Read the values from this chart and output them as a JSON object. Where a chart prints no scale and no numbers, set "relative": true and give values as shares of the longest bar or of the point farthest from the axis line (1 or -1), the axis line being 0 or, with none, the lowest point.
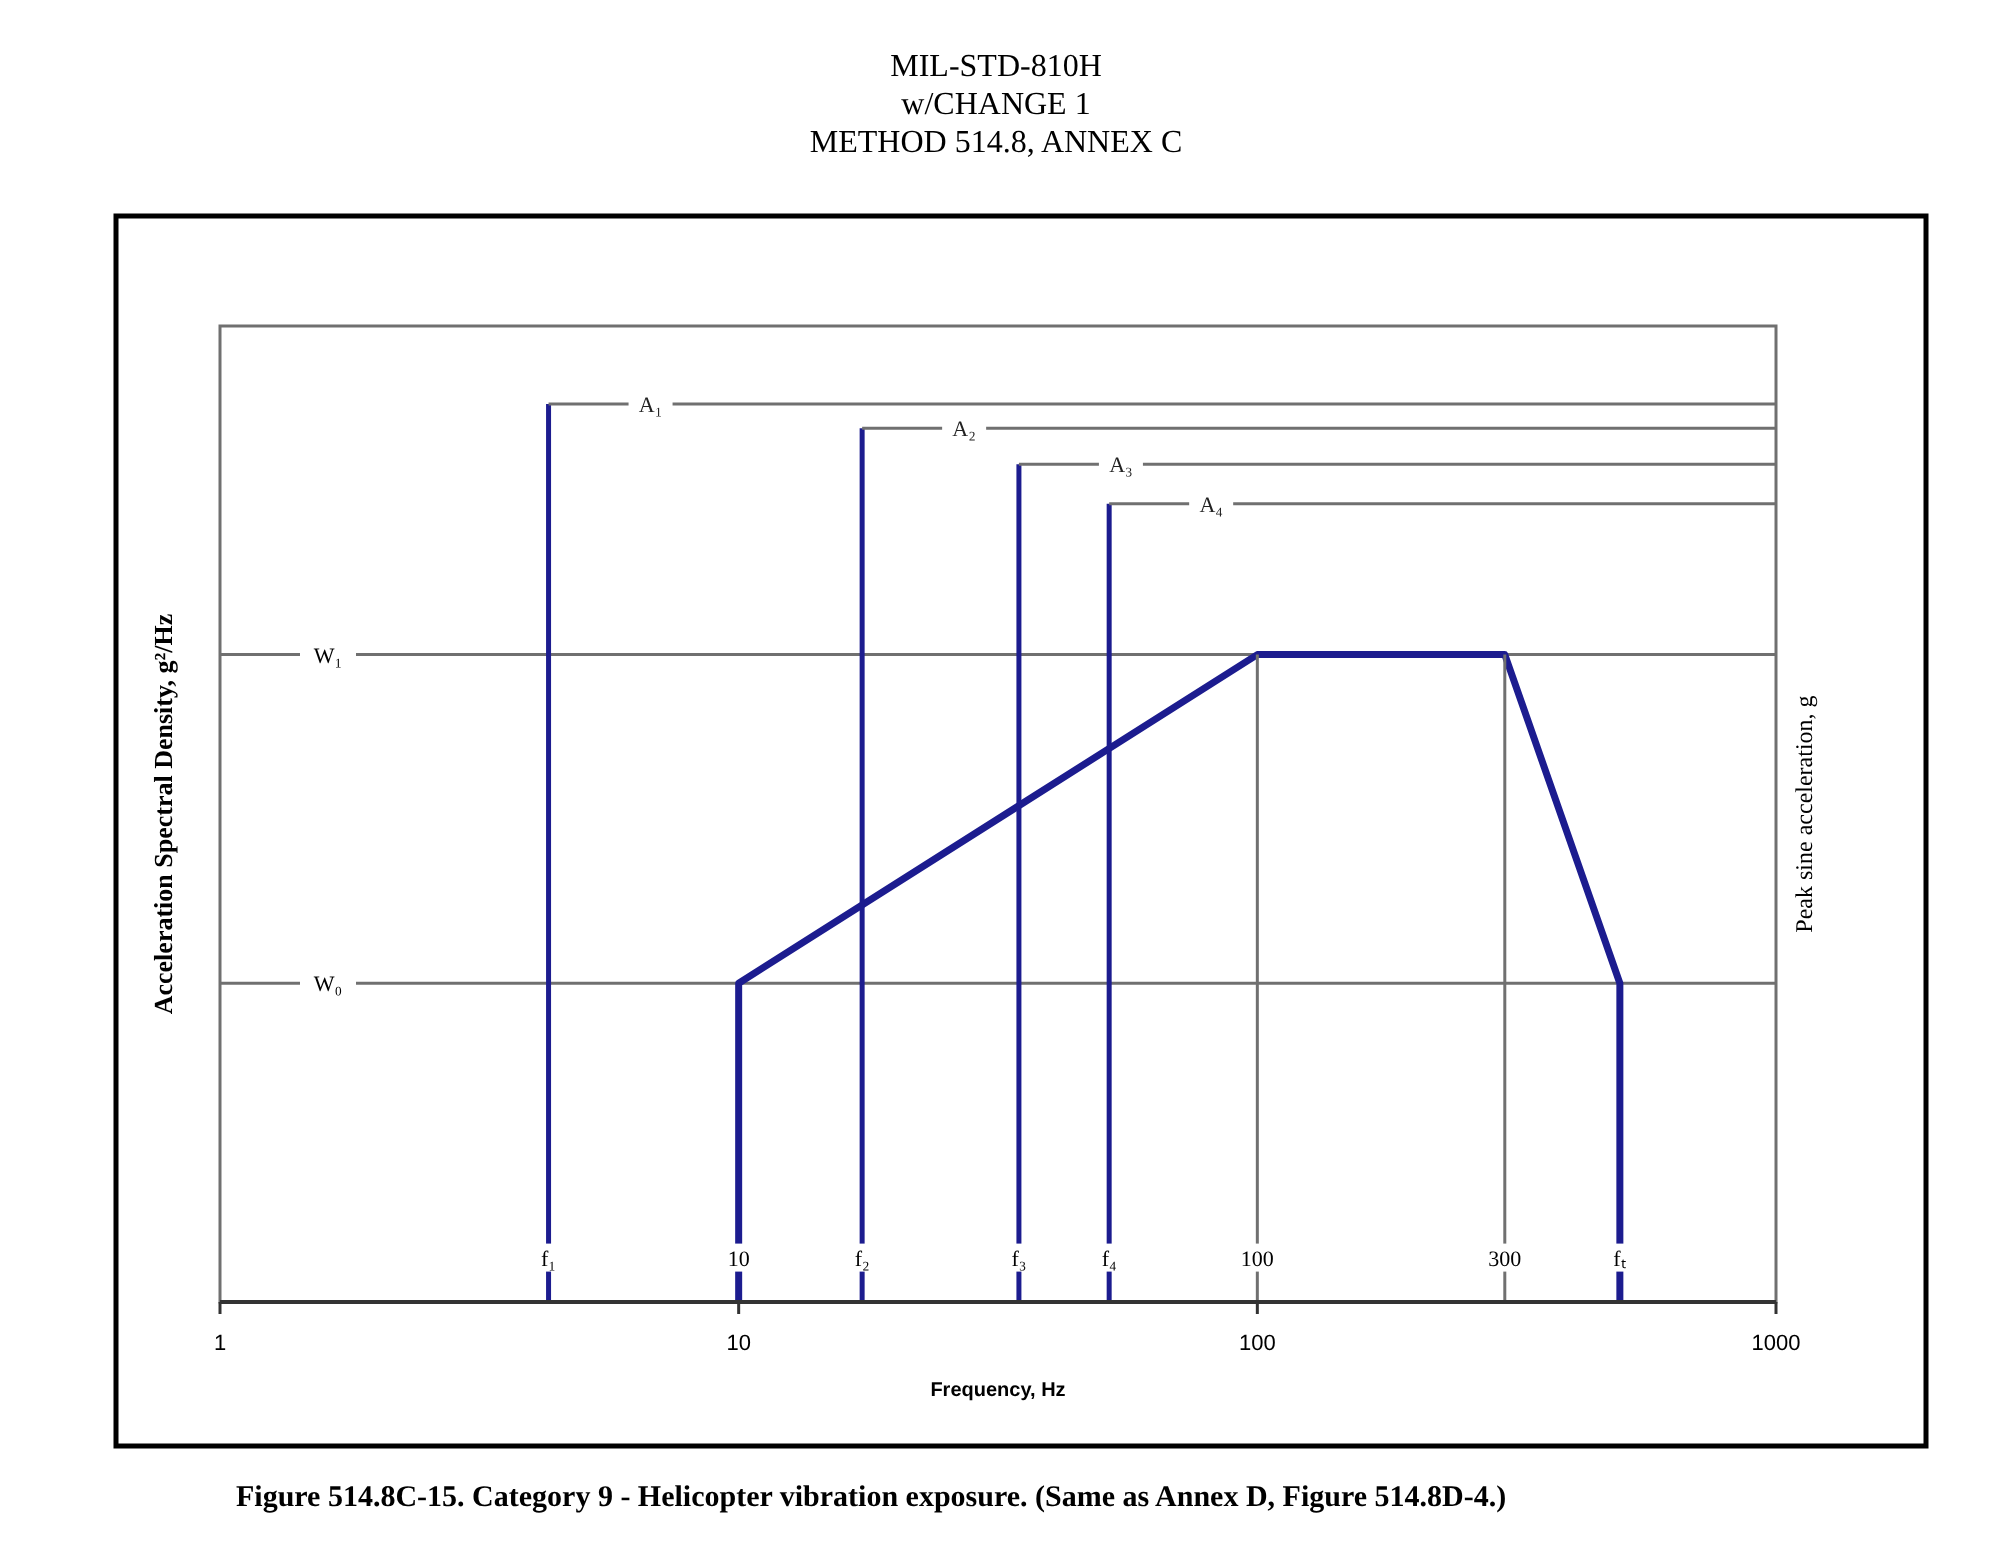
{
  "chart_data": {
    "type": "line",
    "title": "MIL-STD-810H\nw/CHANGE 1\nMETHOD 514.8, ANNEX C",
    "xlabel": "Frequency, Hz",
    "ylabel": "Acceleration Spectral Density, g²/Hz",
    "y2label": "Peak sine acceleration, g",
    "log": "x",
    "xlim": [
      1,
      1000
    ],
    "xticks": [
      1,
      10,
      100,
      1000
    ],
    "relative": true,
    "grid": false,
    "marker": "none",
    "line_style": "solid",
    "series": [
      {
        "color": "#1c1c8f",
        "x": [
          10,
          10,
          100,
          300,
          500,
          500
        ],
        "values": [
          0,
          0.355,
          0.721,
          0.721,
          0.355,
          0
        ]
      },
      {
        "color": "#1c1c8f",
        "x": [
          4.3,
          4.3
        ],
        "values": [
          0,
          1
        ]
      },
      {
        "color": "#1c1c8f",
        "x": [
          17.3,
          17.3
        ],
        "values": [
          0,
          0.973
        ]
      },
      {
        "color": "#1c1c8f",
        "x": [
          34.7,
          34.7
        ],
        "values": [
          0,
          0.933
        ]
      },
      {
        "color": "#1c1c8f",
        "x": [
          51.8,
          51.8
        ],
        "values": [
          0,
          0.889
        ]
      },
      {
        "name": "A₁",
        "color": "#707070",
        "x": [
          4.3,
          1000
        ],
        "values": [
          1,
          1
        ]
      },
      {
        "name": "A₂",
        "color": "#707070",
        "x": [
          17.3,
          1000
        ],
        "values": [
          0.973,
          0.973
        ]
      },
      {
        "name": "A₃",
        "color": "#707070",
        "x": [
          34.7,
          1000
        ],
        "values": [
          0.933,
          0.933
        ]
      },
      {
        "name": "A₄",
        "color": "#707070",
        "x": [
          51.8,
          1000
        ],
        "values": [
          0.889,
          0.889
        ]
      },
      {
        "color": "#707070",
        "x": [
          100,
          100
        ],
        "values": [
          0,
          0.721
        ]
      },
      {
        "color": "#707070",
        "x": [
          300,
          300
        ],
        "values": [
          0,
          0.721
        ]
      }
    ],
    "ref_lines": [
      {
        "axis": "y",
        "value": 0.721,
        "label": "W₁",
        "color": "#707070"
      },
      {
        "axis": "y",
        "value": 0.355,
        "label": "W₀",
        "color": "#707070"
      }
    ],
    "annotations": [
      {
        "text": "f₁",
        "x": 4.3,
        "y": 0.045
      },
      {
        "text": "10",
        "x": 10,
        "y": 0.045
      },
      {
        "text": "f₂",
        "x": 17.3,
        "y": 0.045
      },
      {
        "text": "f₃",
        "x": 34.7,
        "y": 0.045
      },
      {
        "text": "f₄",
        "x": 51.8,
        "y": 0.045
      },
      {
        "text": "100",
        "x": 100,
        "y": 0.045
      },
      {
        "text": "300",
        "x": 300,
        "y": 0.045
      },
      {
        "text": "fₜ",
        "x": 500,
        "y": 0.045
      },
      "Figure 514.8C-15.  Category 9 - Helicopter vibration exposure.  (Same as Annex D, Figure 514.8D-4.)"
    ]
  }
}
